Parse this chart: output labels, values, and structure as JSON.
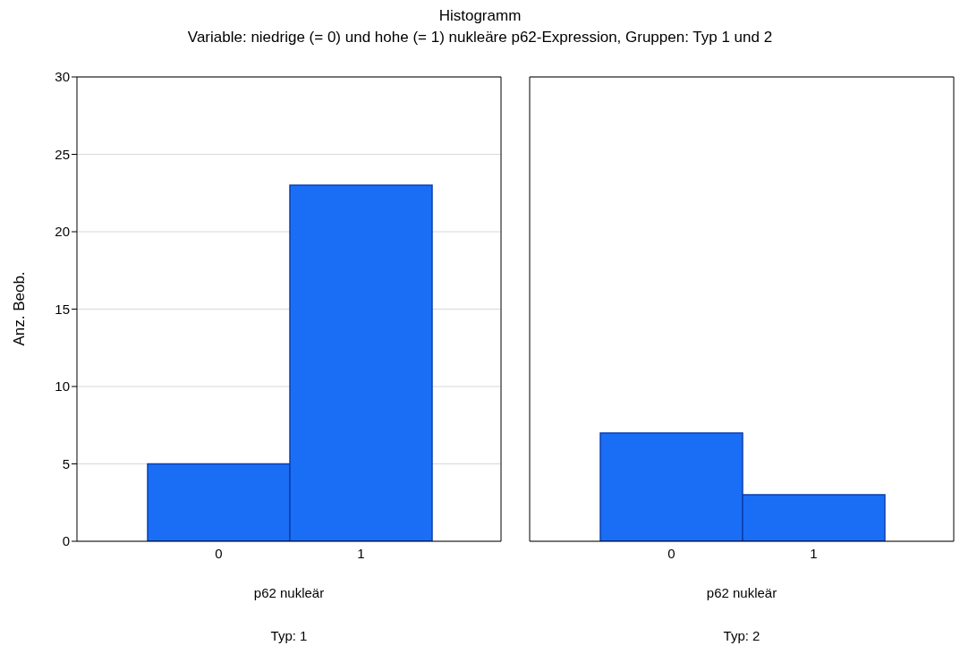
{
  "chart_data": [
    {
      "type": "bar",
      "title": "Histogramm",
      "subtitle": "Variable: niedrige (= 0) und hohe (= 1) nukleäre p62-Expression, Gruppen: Typ 1 und 2",
      "ylabel": "Anz. Beob.",
      "xlabel": "p62 nukleär",
      "categories": [
        "0",
        "1"
      ],
      "values": [
        5,
        23
      ],
      "color": "#1a6ef5",
      "ylim": [
        0,
        30
      ],
      "yticks": [
        0,
        5,
        10,
        15,
        20,
        25,
        30
      ],
      "grid": "y",
      "annotations": [
        "Typ: 1"
      ]
    },
    {
      "type": "bar",
      "xlabel": "p62 nukleär",
      "categories": [
        "0",
        "1"
      ],
      "values": [
        7,
        3
      ],
      "color": "#1a6ef5",
      "ylim": [
        0,
        30
      ],
      "yticks": [
        0,
        5,
        10,
        15,
        20,
        25,
        30
      ],
      "grid": "y",
      "tick_labels": "x",
      "annotations": [
        "Typ: 2"
      ]
    }
  ]
}
